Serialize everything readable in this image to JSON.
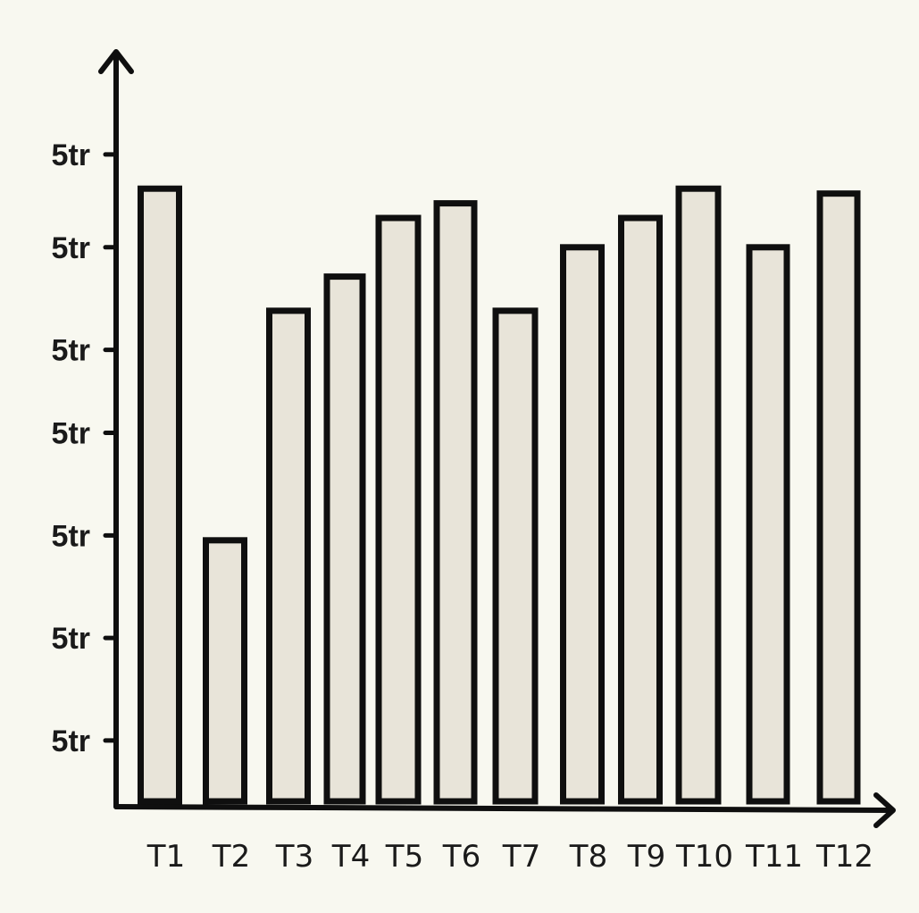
{
  "chart_data": {
    "type": "bar",
    "categories": [
      "T1",
      "T2",
      "T3",
      "T4",
      "T5",
      "T6",
      "T7",
      "T8",
      "T9",
      "T10",
      "T11",
      "T12"
    ],
    "values": [
      6.3,
      2.7,
      5.05,
      5.4,
      6.0,
      6.15,
      5.05,
      5.7,
      6.0,
      6.3,
      5.7,
      6.25
    ],
    "yticks": [
      {
        "value": 0.65,
        "label": "5tr"
      },
      {
        "value": 1.7,
        "label": "5tr"
      },
      {
        "value": 2.75,
        "label": "5tr"
      },
      {
        "value": 3.8,
        "label": "5tr"
      },
      {
        "value": 4.65,
        "label": "5tr"
      },
      {
        "value": 5.7,
        "label": "5tr"
      },
      {
        "value": 6.65,
        "label": "5tr"
      }
    ],
    "ylim": [
      0,
      7.5
    ],
    "title": "",
    "xlabel": "",
    "ylabel": "",
    "grid": false,
    "legend": "none",
    "bar_fill": "#e8e4d9",
    "bar_stroke": "#0f0f0f",
    "axis_color": "#0f0f0f",
    "background": "#f8f8f0"
  }
}
